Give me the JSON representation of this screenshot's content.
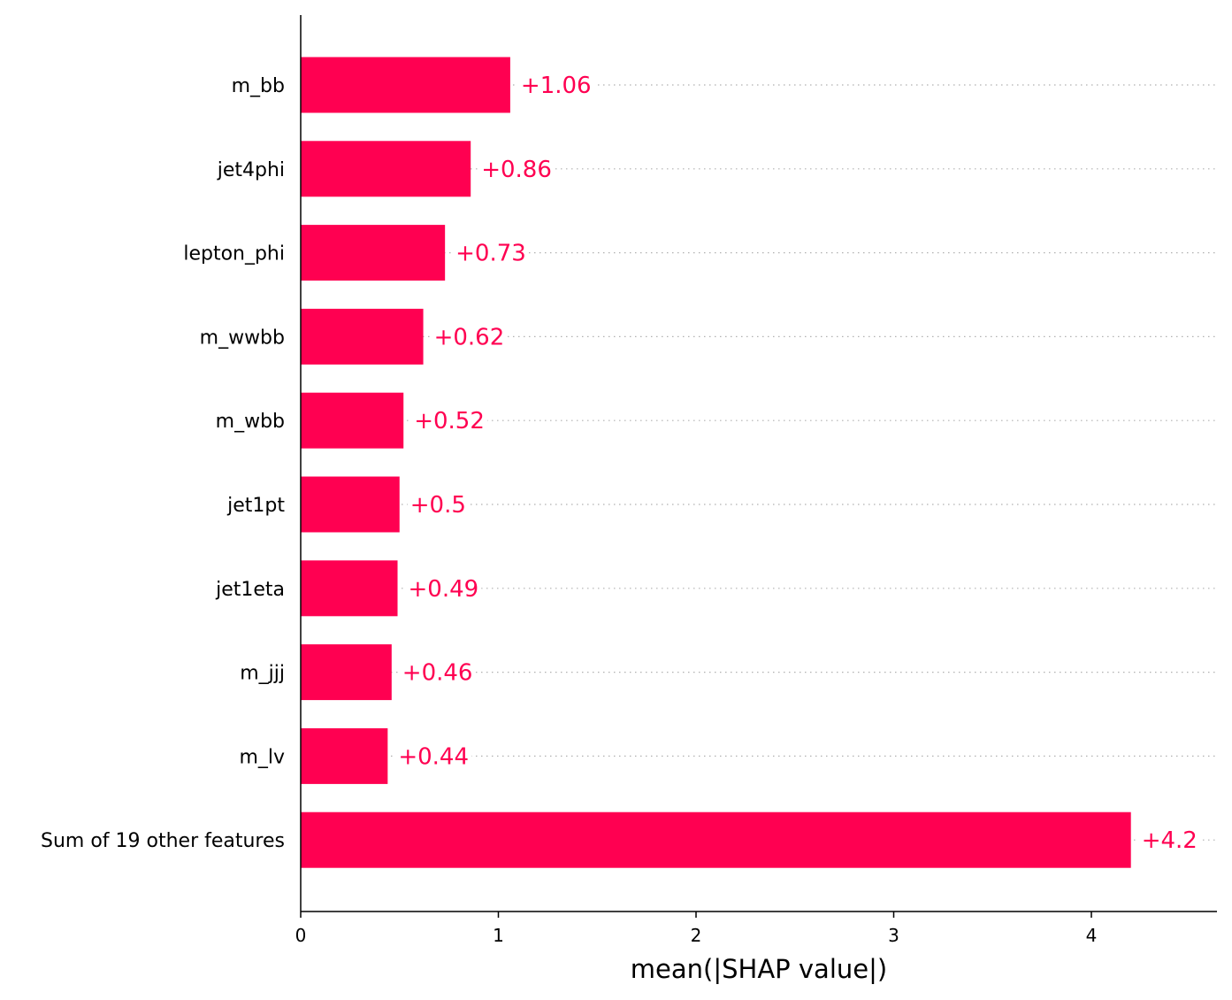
{
  "chart_data": {
    "type": "bar",
    "orientation": "horizontal",
    "categories": [
      "m_bb",
      "jet4phi",
      "lepton_phi",
      "m_wwbb",
      "m_wbb",
      "jet1pt",
      "jet1eta",
      "m_jjj",
      "m_lv",
      "Sum of 19 other features"
    ],
    "values": [
      1.06,
      0.86,
      0.73,
      0.62,
      0.52,
      0.5,
      0.49,
      0.46,
      0.44,
      4.2
    ],
    "value_labels": [
      "+1.06",
      "+0.86",
      "+0.73",
      "+0.62",
      "+0.52",
      "+0.5",
      "+0.49",
      "+0.46",
      "+0.44",
      "+4.2"
    ],
    "xlabel": "mean(|SHAP value|)",
    "ylabel": "",
    "title": "",
    "xlim": [
      0,
      4.62
    ],
    "xticks": [
      0,
      1,
      2,
      3,
      4
    ],
    "xtick_labels": [
      "0",
      "1",
      "2",
      "3",
      "4"
    ],
    "grid": "dotted horizontal guide lines per bar",
    "legend": "none",
    "bar_color": "#ff0051",
    "guide_color": "#b0b0b0",
    "axis_color": "#000000"
  }
}
